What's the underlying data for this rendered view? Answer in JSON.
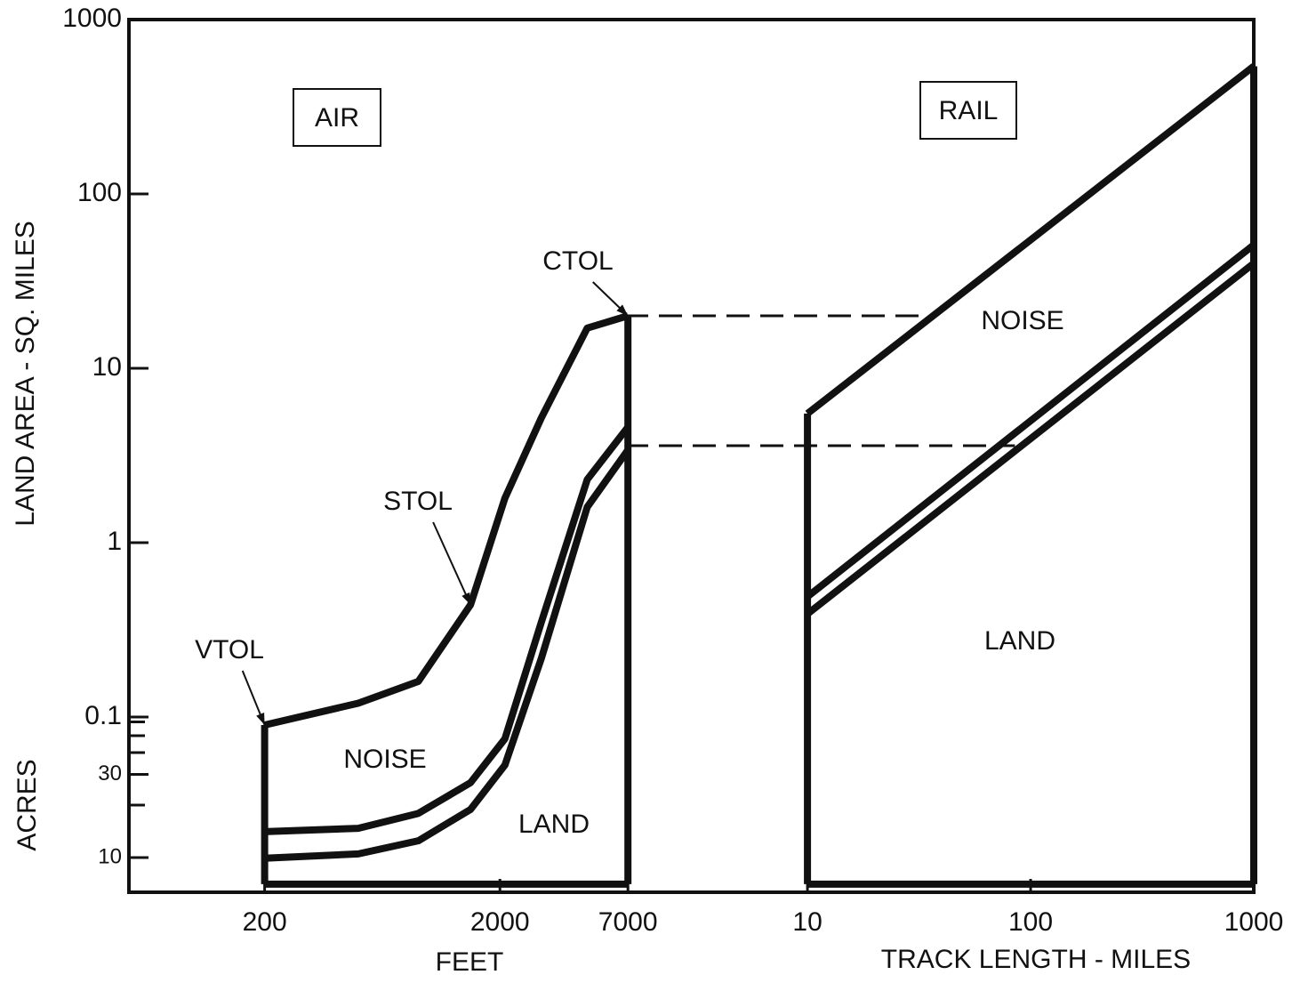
{
  "chart_data": [
    {
      "type": "line",
      "log_x": true,
      "log_y": true,
      "ylabel": "LAND AREA - SQ. MILES",
      "y2label": "ACRES",
      "xlabel": "FEET",
      "xlim": [
        53,
        7300
      ],
      "xticks": [
        200,
        2000,
        7000
      ],
      "ylim": [
        0.01,
        1000
      ],
      "yticks": [
        1000,
        100,
        10,
        1,
        0.1
      ],
      "y2lim": [
        6.4,
        640000
      ],
      "y2ticks": [
        30,
        10
      ],
      "y2_minor_ticks": [
        20,
        40,
        50,
        60
      ],
      "x": [
        200,
        500,
        900,
        1500,
        2100,
        3000,
        4700,
        7000
      ],
      "series": [
        {
          "color": "#111111",
          "values": [
            0.09,
            0.12,
            0.16,
            0.44,
            1.8,
            5.2,
            17,
            20
          ]
        },
        {
          "color": "#111111",
          "values": [
            0.022,
            0.023,
            0.028,
            0.042,
            0.075,
            0.35,
            2.3,
            4.6
          ]
        },
        {
          "color": "#111111",
          "values": [
            0.0155,
            0.0164,
            0.0195,
            0.0295,
            0.053,
            0.217,
            1.6,
            3.4
          ]
        },
        {
          "color": "#111111",
          "values": [
            0.011,
            0.011,
            0.011,
            0.011,
            0.011,
            0.011,
            0.011,
            0.011
          ]
        }
      ],
      "box_label": "AIR",
      "annotations": [
        {
          "text": "NOISE"
        },
        {
          "text": "LAND"
        },
        {
          "text": "VTOL",
          "x": 200,
          "y": 0.09
        },
        {
          "text": "STOL",
          "x": 1500,
          "y": 0.44
        },
        {
          "text": "CTOL",
          "x": 7000,
          "y": 20
        }
      ]
    },
    {
      "type": "line",
      "log_x": true,
      "log_y": true,
      "xlabel": "TRACK LENGTH - MILES",
      "xlim": [
        2.5,
        1000
      ],
      "xticks": [
        10,
        100,
        1000
      ],
      "ylim": [
        0.01,
        1000
      ],
      "x": [
        10,
        1000
      ],
      "series": [
        {
          "color": "#111111",
          "values": [
            5.5,
            540
          ]
        },
        {
          "color": "#111111",
          "values": [
            0.49,
            51
          ]
        },
        {
          "color": "#111111",
          "values": [
            0.39,
            40
          ]
        },
        {
          "color": "#111111",
          "values": [
            0.011,
            0.011
          ]
        }
      ],
      "box_label": "RAIL",
      "annotations": [
        {
          "text": "NOISE"
        },
        {
          "text": "LAND"
        }
      ],
      "reference_lines": [
        {
          "value": 20,
          "x_end": 33
        },
        {
          "value": 3.6,
          "x_end": 85
        }
      ]
    }
  ]
}
